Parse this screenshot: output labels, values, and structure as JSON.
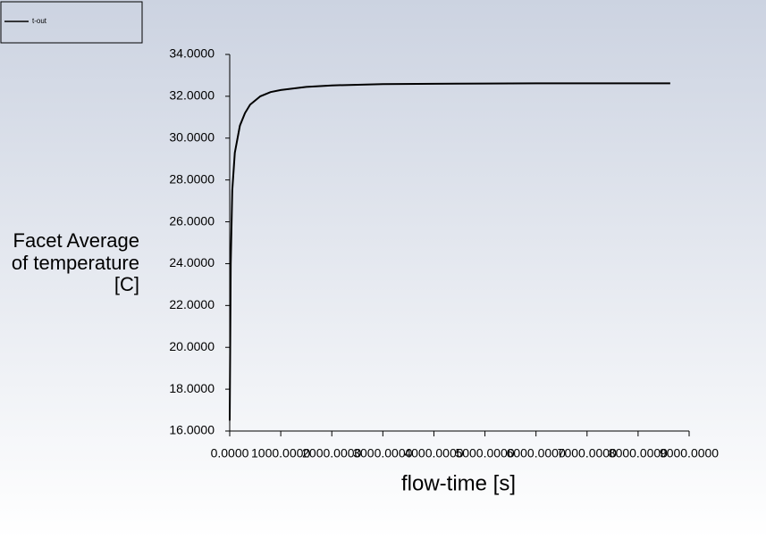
{
  "chart_data": {
    "type": "line",
    "x_label": "flow-time [s]",
    "y_label": "Facet Average of temperature [C]",
    "x": [
      0,
      20,
      50,
      100,
      200,
      300,
      400,
      600,
      800,
      1000,
      1500,
      2000,
      3000,
      4000,
      5000,
      6000,
      7000,
      8000,
      8630
    ],
    "series": [
      {
        "name": "t-out",
        "color": "#000000",
        "values": [
          16.5,
          24.0,
          27.5,
          29.3,
          30.6,
          31.2,
          31.6,
          32.0,
          32.2,
          32.3,
          32.45,
          32.52,
          32.58,
          32.6,
          32.61,
          32.62,
          32.62,
          32.62,
          32.62
        ]
      }
    ],
    "xlim": [
      0,
      9000
    ],
    "ylim": [
      16,
      34
    ],
    "xticks": [
      {
        "value": 0,
        "label": "0.0000"
      },
      {
        "value": 1000,
        "label": "1000.0000"
      },
      {
        "value": 2000,
        "label": "2000.0000"
      },
      {
        "value": 3000,
        "label": "3000.0000"
      },
      {
        "value": 4000,
        "label": "4000.0000"
      },
      {
        "value": 5000,
        "label": "5000.0000"
      },
      {
        "value": 6000,
        "label": "6000.0000"
      },
      {
        "value": 7000,
        "label": "7000.0000"
      },
      {
        "value": 8000,
        "label": "8000.0000"
      },
      {
        "value": 9000,
        "label": "9000.0000"
      }
    ],
    "yticks": [
      {
        "value": 16,
        "label": "16.0000"
      },
      {
        "value": 18,
        "label": "18.0000"
      },
      {
        "value": 20,
        "label": "20.0000"
      },
      {
        "value": 22,
        "label": "22.0000"
      },
      {
        "value": 24,
        "label": "24.0000"
      },
      {
        "value": 26,
        "label": "26.0000"
      },
      {
        "value": 28,
        "label": "28.0000"
      },
      {
        "value": 30,
        "label": "30.0000"
      },
      {
        "value": 32,
        "label": "32.0000"
      },
      {
        "value": 34,
        "label": "34.0000"
      }
    ],
    "legend": "top-left"
  }
}
